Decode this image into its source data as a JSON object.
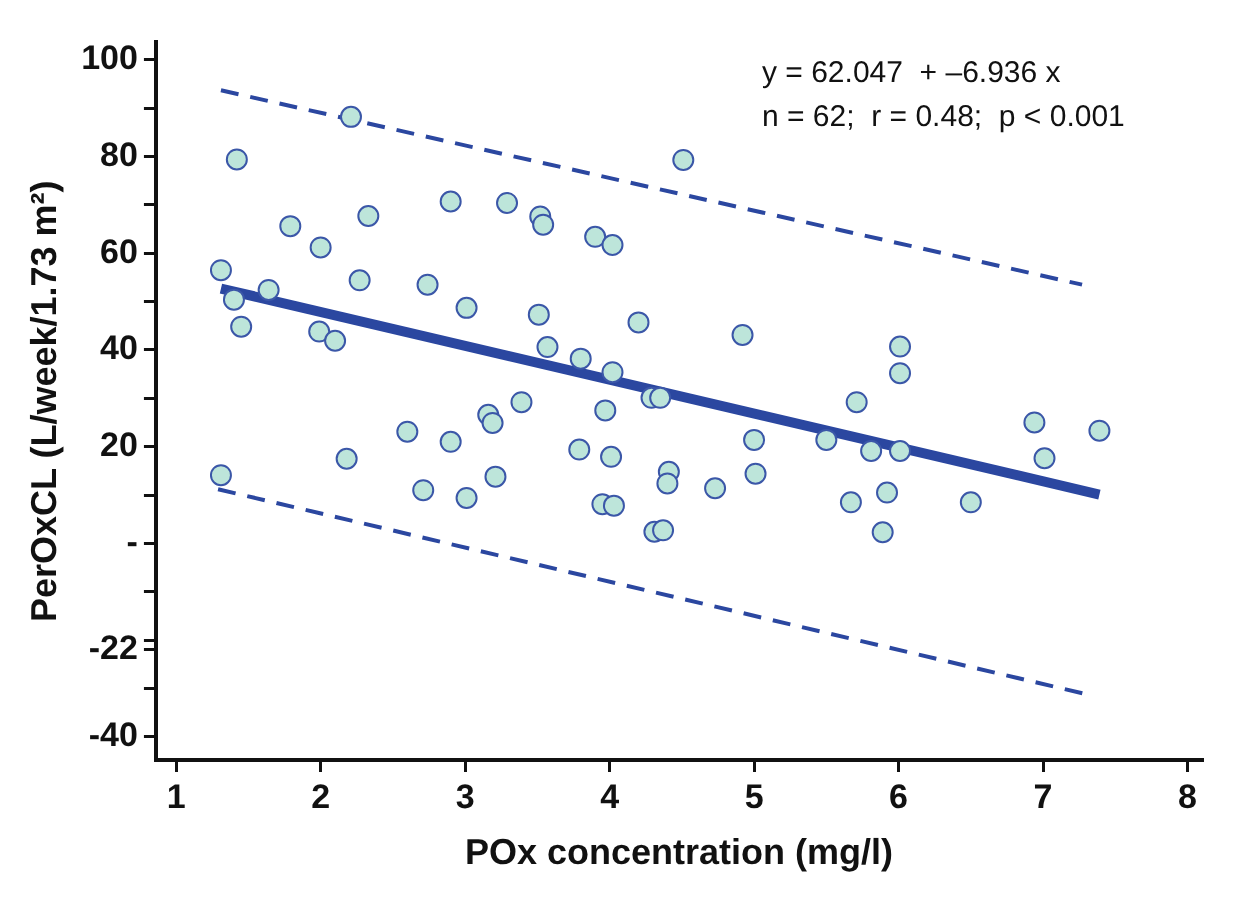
{
  "chart_data": {
    "type": "scatter",
    "xlabel": "POx concentration (mg/l)",
    "ylabel": "PerOxCL (L/week/1.73 m²)",
    "annotations": [
      "y = 62.047  + –6.936 x",
      "n = 62;  r = 0.48;  p < 0.001"
    ],
    "xlim": [
      0.86,
      8.1
    ],
    "xticks": [
      1,
      2,
      3,
      4,
      5,
      6,
      7,
      8
    ],
    "ylim": [
      -44.8,
      103.6
    ],
    "yticks": [
      100,
      {
        "value": 90,
        "label": null
      },
      80,
      {
        "value": 70,
        "label": null
      },
      60,
      {
        "value": 50,
        "label": null
      },
      40,
      {
        "value": 30,
        "label": null
      },
      20,
      {
        "value": 10,
        "label": null
      },
      {
        "value": 0,
        "label": "-"
      },
      {
        "value": -10,
        "label": null
      },
      -22,
      {
        "value": -20,
        "label": null
      },
      {
        "value": -30,
        "label": null
      },
      -40
    ],
    "grid": false,
    "legend": false,
    "series": [
      {
        "type": "scatter",
        "marker": "circle",
        "color": "#bde5da",
        "x": [
          1.42,
          1.31,
          1.4,
          1.45,
          1.64,
          1.79,
          2.0,
          1.99,
          2.1,
          2.21,
          2.27,
          2.33,
          2.74,
          2.9,
          3.01,
          3.29,
          3.52,
          3.54,
          3.51,
          3.57,
          3.9,
          4.02,
          3.8,
          4.02,
          4.2,
          4.29,
          4.35,
          4.51,
          2.6,
          2.9,
          3.16,
          3.19,
          3.39,
          3.97,
          3.79,
          1.31,
          2.18,
          2.71,
          3.01,
          3.21,
          4.01,
          3.95,
          4.03,
          4.31,
          4.37,
          4.41,
          4.4,
          4.73,
          5.0,
          5.01,
          5.5,
          5.67,
          5.81,
          5.92,
          5.89,
          6.01,
          5.71,
          6.5,
          6.94,
          7.01,
          7.39,
          4.92,
          6.01,
          6.01
        ],
        "values": [
          79.4,
          56.5,
          50.4,
          44.8,
          52.4,
          65.6,
          61.2,
          43.8,
          41.9,
          88.2,
          54.4,
          67.7,
          53.5,
          70.7,
          48.7,
          70.4,
          67.6,
          65.9,
          47.3,
          40.6,
          63.4,
          61.7,
          38.2,
          35.4,
          45.7,
          30.1,
          30.1,
          79.3,
          23.1,
          21.0,
          26.6,
          24.9,
          29.2,
          27.5,
          19.4,
          14.1,
          17.5,
          11.0,
          9.4,
          13.8,
          17.9,
          8.1,
          7.8,
          2.4,
          2.7,
          14.8,
          12.4,
          11.4,
          21.4,
          14.4,
          21.4,
          8.5,
          19.1,
          10.5,
          2.3,
          19.1,
          29.2,
          8.5,
          25.0,
          17.6,
          23.3,
          43.1,
          40.7,
          35.2
        ]
      },
      {
        "type": "line",
        "line_style": "solid",
        "color": "#2b47a0",
        "x": [
          1.31,
          7.39
        ],
        "values": [
          52.7,
          10.1
        ]
      },
      {
        "type": "line",
        "line_style": "dashed",
        "color": "#2b47a0",
        "x": [
          1.31,
          7.27
        ],
        "values": [
          93.7,
          53.5
        ]
      },
      {
        "type": "line",
        "line_style": "dashed",
        "color": "#2b47a0",
        "x": [
          1.29,
          7.3
        ],
        "values": [
          11.2,
          -31.2
        ]
      }
    ]
  }
}
